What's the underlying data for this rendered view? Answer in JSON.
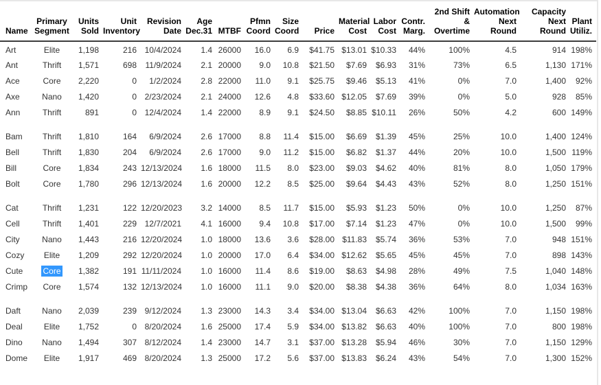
{
  "panel": {
    "background": "#ffffff",
    "border_color": "#e7e7e7",
    "header_rule_color": "#3d3d3d"
  },
  "selection": {
    "row": "Cute",
    "column_index": 1,
    "text": "Core",
    "background": "#3297fd",
    "color": "#ffffff"
  },
  "table": {
    "columns": [
      "Name",
      "Primary\nSegment",
      "Units\nSold",
      "Unit\nInventory",
      "Revision\nDate",
      "Age\nDec.31",
      "MTBF",
      "Pfmn\nCoord",
      "Size\nCoord",
      "Price",
      "Material\nCost",
      "Labor\nCost",
      "Contr.\nMarg.",
      "2nd Shift\n&\nOvertime",
      "Automation\nNext Round",
      "Capacity\nNext\nRound",
      "Plant\nUtiliz."
    ],
    "groups": [
      {
        "rows": [
          [
            "Art",
            "Elite",
            "1,198",
            "216",
            "10/4/2024",
            "1.4",
            "26000",
            "16.0",
            "6.9",
            "$41.75",
            "$13.01",
            "$10.33",
            "44%",
            "100%",
            "4.5",
            "914",
            "198%"
          ],
          [
            "Ant",
            "Thrift",
            "1,571",
            "698",
            "11/9/2024",
            "2.1",
            "20000",
            "9.0",
            "10.8",
            "$21.50",
            "$7.69",
            "$6.93",
            "31%",
            "73%",
            "6.5",
            "1,130",
            "171%"
          ],
          [
            "Ace",
            "Core",
            "2,220",
            "0",
            "1/2/2024",
            "2.8",
            "22000",
            "11.0",
            "9.1",
            "$25.75",
            "$9.46",
            "$5.13",
            "41%",
            "0%",
            "7.0",
            "1,400",
            "92%"
          ],
          [
            "Axe",
            "Nano",
            "1,420",
            "0",
            "2/23/2024",
            "2.1",
            "24000",
            "12.6",
            "4.8",
            "$33.60",
            "$12.05",
            "$7.69",
            "39%",
            "0%",
            "5.0",
            "928",
            "85%"
          ],
          [
            "Ann",
            "Thrift",
            "891",
            "0",
            "12/4/2024",
            "1.4",
            "22000",
            "8.9",
            "9.1",
            "$24.50",
            "$8.85",
            "$10.11",
            "26%",
            "50%",
            "4.2",
            "600",
            "149%"
          ]
        ]
      },
      {
        "rows": [
          [
            "Bam",
            "Thrift",
            "1,810",
            "164",
            "6/9/2024",
            "2.6",
            "17000",
            "8.8",
            "11.4",
            "$15.00",
            "$6.69",
            "$1.39",
            "45%",
            "25%",
            "10.0",
            "1,400",
            "124%"
          ],
          [
            "Bell",
            "Thrift",
            "1,830",
            "204",
            "6/9/2024",
            "2.6",
            "17000",
            "9.0",
            "11.2",
            "$15.00",
            "$6.82",
            "$1.37",
            "44%",
            "20%",
            "10.0",
            "1,500",
            "119%"
          ],
          [
            "Bill",
            "Core",
            "1,834",
            "243",
            "12/13/2024",
            "1.6",
            "18000",
            "11.5",
            "8.0",
            "$23.00",
            "$9.03",
            "$4.62",
            "40%",
            "81%",
            "8.0",
            "1,050",
            "179%"
          ],
          [
            "Bolt",
            "Core",
            "1,780",
            "296",
            "12/13/2024",
            "1.6",
            "20000",
            "12.2",
            "8.5",
            "$25.00",
            "$9.64",
            "$4.43",
            "43%",
            "52%",
            "8.0",
            "1,250",
            "151%"
          ]
        ]
      },
      {
        "rows": [
          [
            "Cat",
            "Thrift",
            "1,231",
            "122",
            "12/20/2023",
            "3.2",
            "14000",
            "8.5",
            "11.7",
            "$15.00",
            "$5.93",
            "$1.23",
            "50%",
            "0%",
            "10.0",
            "1,250",
            "87%"
          ],
          [
            "Cell",
            "Thrift",
            "1,401",
            "229",
            "12/7/2021",
            "4.1",
            "16000",
            "9.4",
            "10.8",
            "$17.00",
            "$7.14",
            "$1.23",
            "47%",
            "0%",
            "10.0",
            "1,500",
            "99%"
          ],
          [
            "City",
            "Nano",
            "1,443",
            "216",
            "12/20/2024",
            "1.0",
            "18000",
            "13.6",
            "3.6",
            "$28.00",
            "$11.83",
            "$5.74",
            "36%",
            "53%",
            "7.0",
            "948",
            "151%"
          ],
          [
            "Cozy",
            "Elite",
            "1,209",
            "292",
            "12/20/2024",
            "1.0",
            "20000",
            "17.0",
            "6.4",
            "$34.00",
            "$12.62",
            "$5.65",
            "45%",
            "45%",
            "7.0",
            "898",
            "143%"
          ],
          [
            "Cute",
            "Core",
            "1,382",
            "191",
            "11/11/2024",
            "1.0",
            "16000",
            "11.4",
            "8.6",
            "$19.00",
            "$8.63",
            "$4.98",
            "28%",
            "49%",
            "7.5",
            "1,040",
            "148%"
          ],
          [
            "Crimp",
            "Core",
            "1,574",
            "132",
            "12/13/2024",
            "1.0",
            "16000",
            "11.1",
            "9.0",
            "$20.00",
            "$8.38",
            "$4.38",
            "36%",
            "64%",
            "8.0",
            "1,034",
            "163%"
          ]
        ]
      },
      {
        "rows": [
          [
            "Daft",
            "Nano",
            "2,039",
            "239",
            "9/12/2024",
            "1.3",
            "23000",
            "14.3",
            "3.4",
            "$34.00",
            "$13.04",
            "$6.63",
            "42%",
            "100%",
            "7.0",
            "1,150",
            "198%"
          ],
          [
            "Deal",
            "Elite",
            "1,752",
            "0",
            "8/20/2024",
            "1.6",
            "25000",
            "17.4",
            "5.9",
            "$34.00",
            "$13.82",
            "$6.63",
            "40%",
            "100%",
            "7.0",
            "800",
            "198%"
          ],
          [
            "Dino",
            "Nano",
            "1,494",
            "307",
            "8/12/2024",
            "1.4",
            "23000",
            "14.7",
            "3.1",
            "$37.00",
            "$13.28",
            "$5.94",
            "46%",
            "30%",
            "7.0",
            "1,150",
            "129%"
          ],
          [
            "Dome",
            "Elite",
            "1,917",
            "469",
            "8/20/2024",
            "1.3",
            "25000",
            "17.2",
            "5.6",
            "$37.00",
            "$13.83",
            "$6.24",
            "43%",
            "54%",
            "7.0",
            "1,300",
            "152%"
          ]
        ]
      }
    ]
  }
}
